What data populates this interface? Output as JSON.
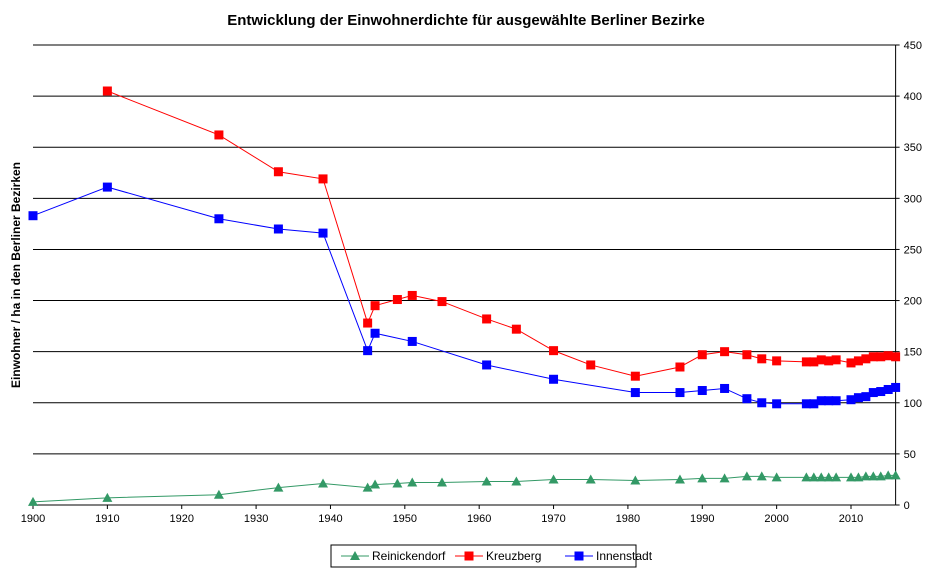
{
  "chart_data": {
    "type": "line",
    "title": "Entwicklung der Einwohnerdichte für ausgewählte Berliner Bezirke",
    "xlabel": "",
    "ylabel": "Einwohner / ha in den Berliner Bezirken",
    "xlim": [
      1900,
      2016
    ],
    "ylim": [
      0,
      450
    ],
    "x_ticks": [
      1900,
      1910,
      1920,
      1930,
      1940,
      1950,
      1960,
      1970,
      1980,
      1990,
      2000,
      2010
    ],
    "y_ticks": [
      0,
      50,
      100,
      150,
      200,
      250,
      300,
      350,
      400,
      450
    ],
    "y_axis_side": "right",
    "grid": "horizontal",
    "legend_placement": "bottom",
    "series": [
      {
        "name": "Reinickendorf",
        "color": "#339966",
        "marker": "triangle",
        "points": [
          [
            1900,
            3
          ],
          [
            1910,
            7
          ],
          [
            1925,
            10
          ],
          [
            1933,
            17
          ],
          [
            1939,
            21
          ],
          [
            1945,
            17
          ],
          [
            1946,
            20
          ],
          [
            1949,
            21
          ],
          [
            1951,
            22
          ],
          [
            1955,
            22
          ],
          [
            1961,
            23
          ],
          [
            1965,
            23
          ],
          [
            1970,
            25
          ],
          [
            1975,
            25
          ],
          [
            1981,
            24
          ],
          [
            1987,
            25
          ],
          [
            1990,
            26
          ],
          [
            1993,
            26
          ],
          [
            1996,
            28
          ],
          [
            1998,
            28
          ],
          [
            2000,
            27
          ],
          [
            2004,
            27
          ],
          [
            2005,
            27
          ],
          [
            2006,
            27
          ],
          [
            2007,
            27
          ],
          [
            2008,
            27
          ],
          [
            2010,
            27
          ],
          [
            2011,
            27
          ],
          [
            2012,
            28
          ],
          [
            2013,
            28
          ],
          [
            2014,
            28
          ],
          [
            2015,
            29
          ],
          [
            2016,
            29
          ]
        ]
      },
      {
        "name": "Kreuzberg",
        "color": "#ff0000",
        "marker": "square",
        "points": [
          [
            1910,
            405
          ],
          [
            1925,
            362
          ],
          [
            1933,
            326
          ],
          [
            1939,
            319
          ],
          [
            1945,
            178
          ],
          [
            1946,
            195
          ],
          [
            1949,
            201
          ],
          [
            1951,
            205
          ],
          [
            1955,
            199
          ],
          [
            1961,
            182
          ],
          [
            1965,
            172
          ],
          [
            1970,
            151
          ],
          [
            1975,
            137
          ],
          [
            1981,
            126
          ],
          [
            1987,
            135
          ],
          [
            1990,
            147
          ],
          [
            1993,
            150
          ],
          [
            1996,
            147
          ],
          [
            1998,
            143
          ],
          [
            2000,
            141
          ],
          [
            2004,
            140
          ],
          [
            2005,
            140
          ],
          [
            2006,
            142
          ],
          [
            2007,
            141
          ],
          [
            2008,
            142
          ],
          [
            2010,
            139
          ],
          [
            2011,
            141
          ],
          [
            2012,
            143
          ],
          [
            2013,
            145
          ],
          [
            2014,
            145
          ],
          [
            2015,
            146
          ],
          [
            2016,
            145
          ]
        ]
      },
      {
        "name": "Innenstadt",
        "color": "#0000ff",
        "marker": "square",
        "points": [
          [
            1900,
            283
          ],
          [
            1910,
            311
          ],
          [
            1925,
            280
          ],
          [
            1933,
            270
          ],
          [
            1939,
            266
          ],
          [
            1945,
            151
          ],
          [
            1946,
            168
          ],
          [
            1951,
            160
          ],
          [
            1961,
            137
          ],
          [
            1970,
            123
          ],
          [
            1981,
            110
          ],
          [
            1987,
            110
          ],
          [
            1990,
            112
          ],
          [
            1993,
            114
          ],
          [
            1996,
            104
          ],
          [
            1998,
            100
          ],
          [
            2000,
            99
          ],
          [
            2004,
            99
          ],
          [
            2005,
            99
          ],
          [
            2006,
            102
          ],
          [
            2007,
            102
          ],
          [
            2008,
            102
          ],
          [
            2010,
            103
          ],
          [
            2011,
            105
          ],
          [
            2012,
            106
          ],
          [
            2013,
            110
          ],
          [
            2014,
            111
          ],
          [
            2015,
            113
          ],
          [
            2016,
            115
          ]
        ]
      }
    ]
  }
}
